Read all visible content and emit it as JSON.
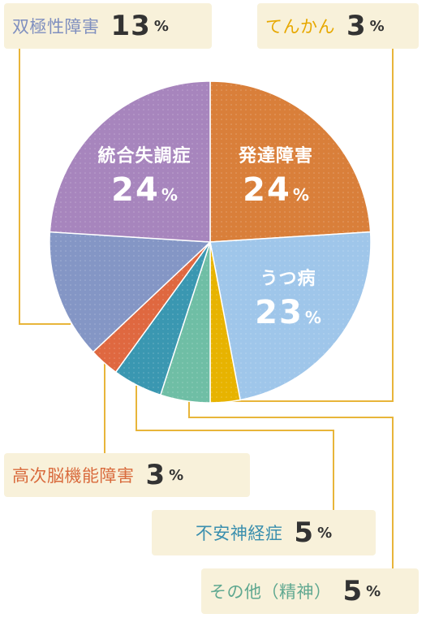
{
  "chart_data": {
    "type": "pie",
    "unit": "%",
    "slices": [
      {
        "label": "発達障害",
        "value": 24,
        "color": "#d97f3a"
      },
      {
        "label": "うつ病",
        "value": 23,
        "color": "#9fc6ea"
      },
      {
        "label": "てんかん",
        "value": 3,
        "color": "#e7b300"
      },
      {
        "label": "その他（精神）",
        "value": 5,
        "color": "#6fbea5"
      },
      {
        "label": "不安神経症",
        "value": 5,
        "color": "#3a97b1"
      },
      {
        "label": "高次脳機能障害",
        "value": 3,
        "color": "#df6840"
      },
      {
        "label": "双極性障害",
        "value": 13,
        "color": "#8496c5"
      },
      {
        "label": "統合失調症",
        "value": 24,
        "color": "#a785bd"
      }
    ]
  },
  "colors": {
    "callout_bg": "#f8f1da",
    "leader_line": "#e8b53a",
    "text_tenkan": "#e7a800",
    "text_bipolar": "#7f8fbf",
    "text_kouji": "#d96a3c",
    "text_anxiety": "#3a8fae",
    "text_other": "#5fa890"
  },
  "callouts": {
    "bipolar": {
      "label": "双極性障害",
      "value": "13",
      "unit": "%"
    },
    "tenkan": {
      "label": "てんかん",
      "value": "3",
      "unit": "%"
    },
    "kouji": {
      "label": "高次脳機能障害",
      "value": "3",
      "unit": "%"
    },
    "anxiety": {
      "label": "不安神経症",
      "value": "5",
      "unit": "%"
    },
    "other": {
      "label": "その他（精神）",
      "value": "5",
      "unit": "%"
    }
  },
  "inner_labels": {
    "hattatsu": {
      "label": "発達障害",
      "value": "24",
      "unit": "%"
    },
    "utsu": {
      "label": "うつ病",
      "value": "23",
      "unit": "%"
    },
    "tougou": {
      "label": "統合失調症",
      "value": "24",
      "unit": "%"
    }
  }
}
